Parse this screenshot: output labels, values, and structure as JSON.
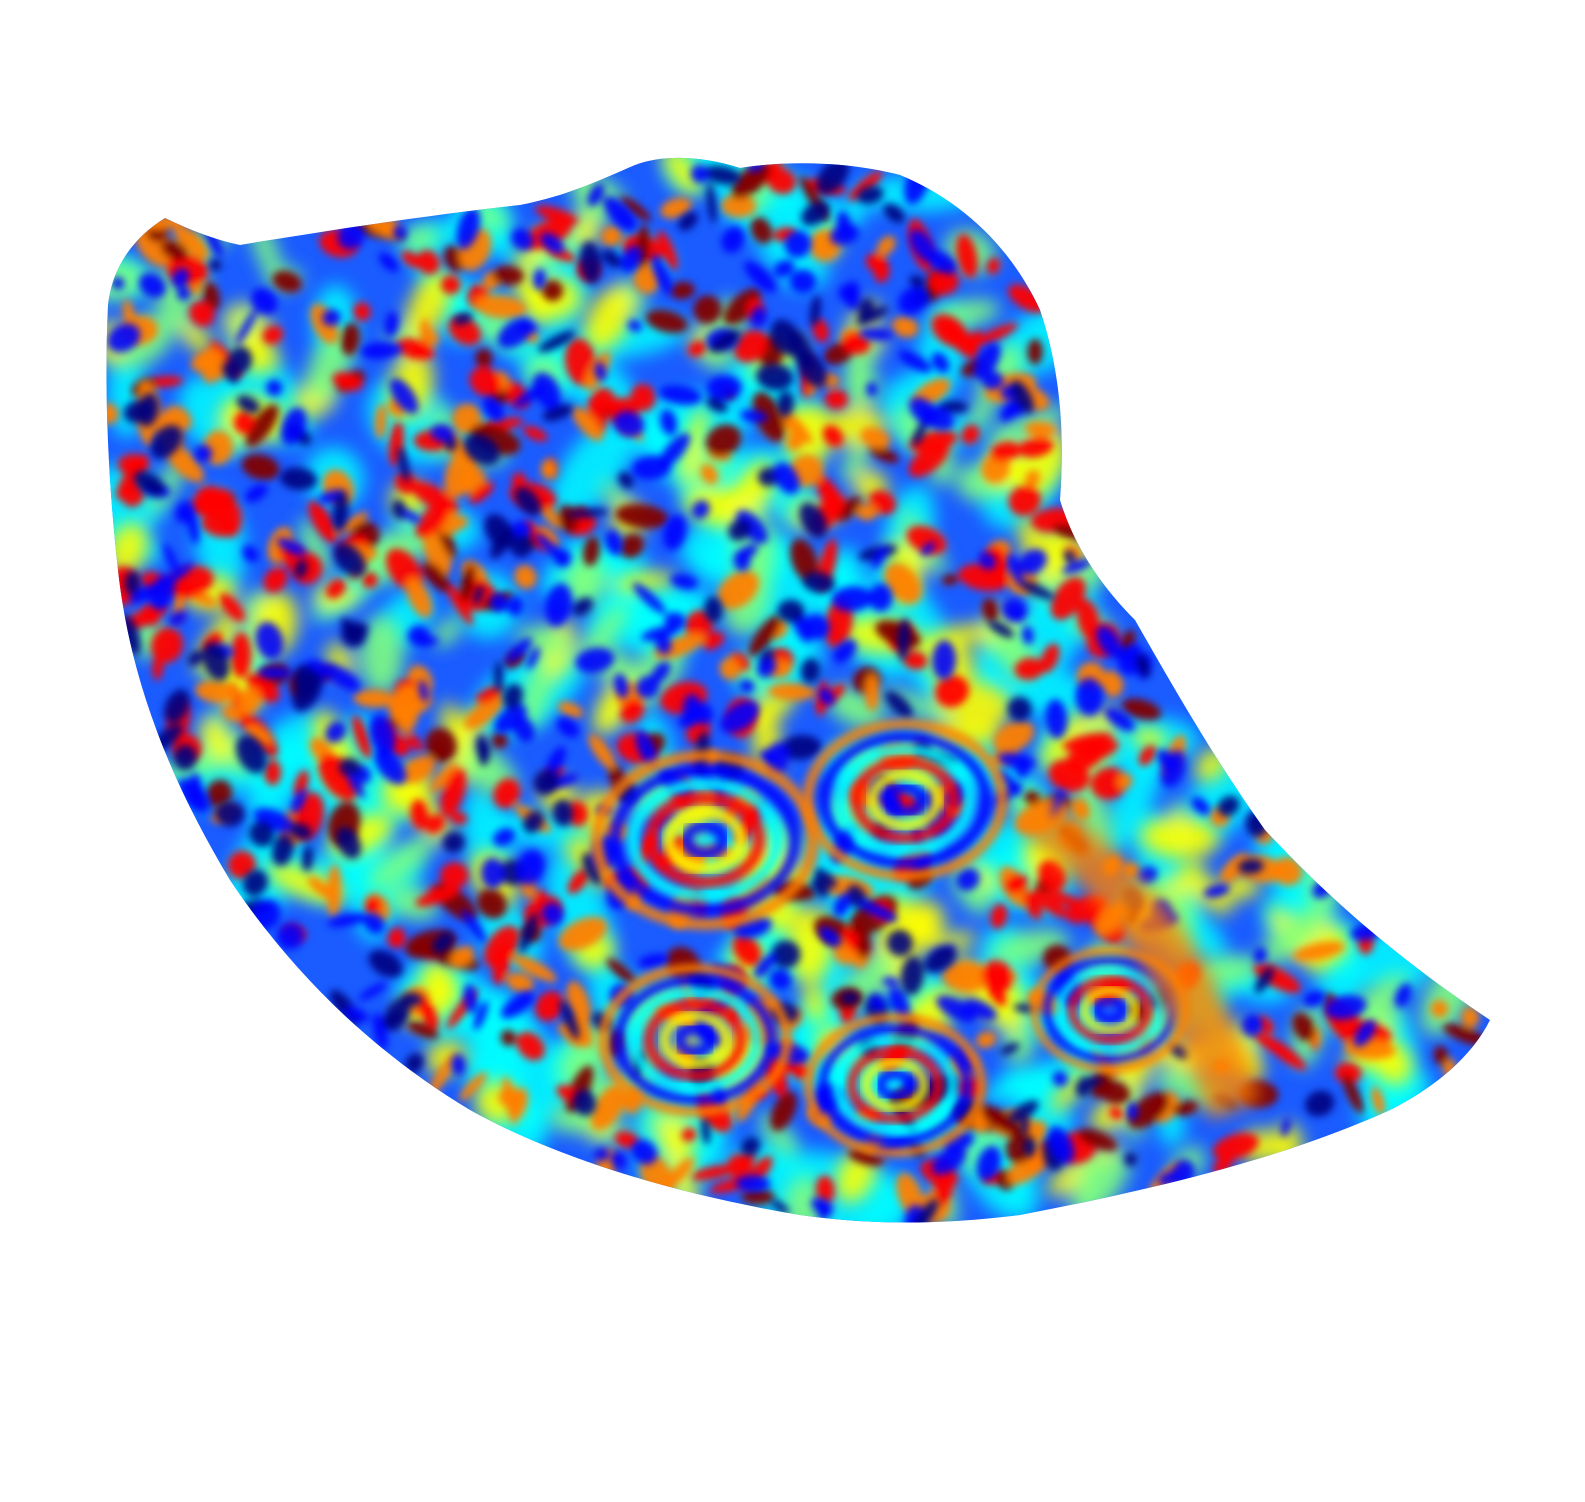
{
  "scene": {
    "subject": "curved-surface-mesh",
    "colormap": "jet",
    "colormap_stops": [
      "#00007f",
      "#0000ff",
      "#007fff",
      "#00ffff",
      "#7fff7f",
      "#ffff00",
      "#ff7f00",
      "#ff0000",
      "#7f0000"
    ],
    "background_color": "#ffffff"
  }
}
